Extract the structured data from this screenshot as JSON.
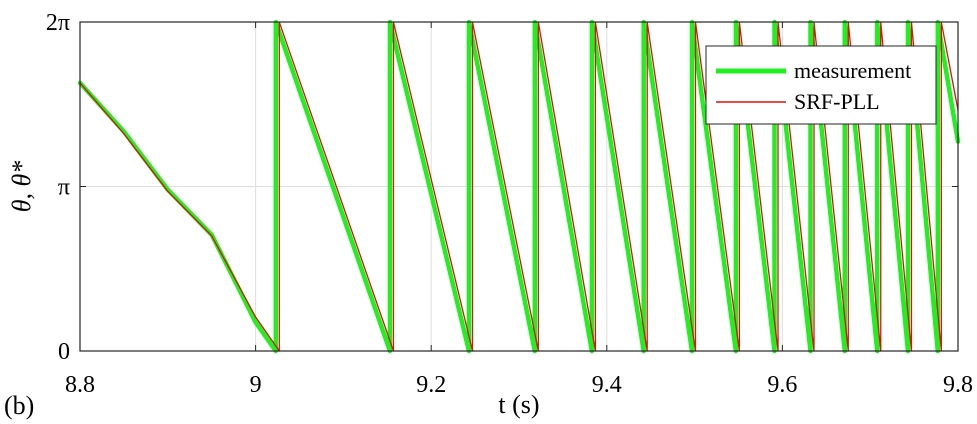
{
  "panel_label": "(b)",
  "chart_data": {
    "type": "line",
    "xlabel": "t (s)",
    "ylabel": "θ, θ*",
    "xlim": [
      8.8,
      9.8
    ],
    "ylim": [
      0,
      6.2832
    ],
    "x_ticks": [
      8.8,
      9.0,
      9.2,
      9.4,
      9.6,
      9.8
    ],
    "x_tick_labels": [
      "8.8",
      "9",
      "9.2",
      "9.4",
      "9.6",
      "9.8"
    ],
    "y_ticks": [
      0,
      3.1416,
      6.2832
    ],
    "y_tick_labels": [
      "0",
      "π",
      "2π"
    ],
    "grid": true,
    "legend_position": "top-right",
    "colors": {
      "measurement": "#22ee22",
      "srf_pll": "#dd1111"
    },
    "series": [
      {
        "name": "measurement",
        "wrap_times": [
          9.023,
          9.153,
          9.243,
          9.318,
          9.383,
          9.442,
          9.497,
          9.547,
          9.591,
          9.632,
          9.671,
          9.708,
          9.743,
          9.777
        ],
        "x": [
          8.8,
          8.85,
          8.9,
          8.95,
          9.0,
          9.023,
          9.023,
          9.153,
          9.153,
          9.243,
          9.243,
          9.318,
          9.318,
          9.383,
          9.383,
          9.442,
          9.442,
          9.497,
          9.497,
          9.547,
          9.547,
          9.591,
          9.591,
          9.632,
          9.632,
          9.671,
          9.671,
          9.708,
          9.708,
          9.743,
          9.743,
          9.777,
          9.777,
          9.8
        ],
        "y": [
          5.12,
          4.19,
          3.08,
          2.22,
          0.55,
          0.0,
          6.28,
          0.0,
          6.28,
          0.0,
          6.28,
          0.0,
          6.28,
          0.0,
          6.28,
          0.0,
          6.28,
          0.0,
          6.28,
          0.0,
          6.28,
          0.0,
          6.28,
          0.0,
          6.28,
          0.0,
          6.28,
          0.0,
          6.28,
          0.0,
          6.28,
          0.0,
          6.28,
          4.0
        ]
      },
      {
        "name": "SRF-PLL",
        "wrap_times": [
          9.027,
          9.157,
          9.247,
          9.322,
          9.387,
          9.446,
          9.501,
          9.551,
          9.595,
          9.636,
          9.675,
          9.712,
          9.747,
          9.781
        ],
        "x": [
          8.8,
          8.85,
          8.9,
          8.95,
          9.0,
          9.027,
          9.027,
          9.157,
          9.157,
          9.247,
          9.247,
          9.322,
          9.322,
          9.387,
          9.387,
          9.446,
          9.446,
          9.501,
          9.501,
          9.551,
          9.551,
          9.595,
          9.595,
          9.636,
          9.636,
          9.675,
          9.675,
          9.712,
          9.712,
          9.747,
          9.747,
          9.781,
          9.781,
          9.8
        ],
        "y": [
          5.12,
          4.15,
          3.05,
          2.2,
          0.65,
          0.0,
          6.28,
          0.0,
          6.28,
          0.0,
          6.28,
          0.0,
          6.28,
          0.0,
          6.28,
          0.0,
          6.28,
          0.0,
          6.28,
          0.0,
          6.28,
          0.0,
          6.28,
          0.0,
          6.28,
          0.0,
          6.28,
          0.0,
          6.28,
          0.0,
          6.28,
          0.0,
          6.28,
          4.6
        ]
      }
    ]
  }
}
